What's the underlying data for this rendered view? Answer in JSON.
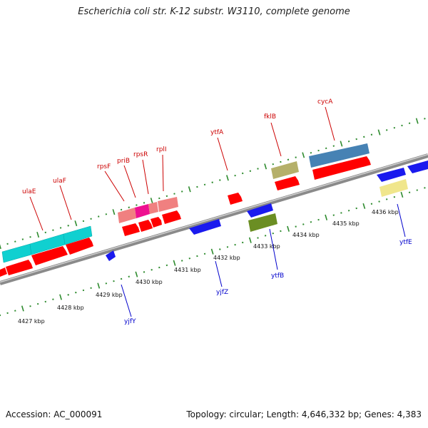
{
  "header": {
    "title": "Escherichia coli str. K-12 substr. W3110, complete genome"
  },
  "footer": {
    "accession": "Accession: AC_000091",
    "summary": "Topology: circular; Length: 4,646,332 bp; Genes: 4,383"
  },
  "map": {
    "ruler_ticks": [
      "4427 kbp",
      "4428 kbp",
      "4429 kbp",
      "4430 kbp",
      "4431 kbp",
      "4432 kbp",
      "4433 kbp",
      "4434 kbp",
      "4435 kbp",
      "4436 kbp"
    ],
    "forward_genes": [
      "ulaE",
      "ulaF",
      "rpsF",
      "priB",
      "rpsR",
      "rplI",
      "ytfA",
      "fklB",
      "cycA"
    ],
    "reverse_genes": [
      "yjfY",
      "yjfZ",
      "ytfB",
      "ytfE"
    ]
  },
  "colors": {
    "backbone": "#8a8a8a",
    "tick": "#2e8b2e",
    "forward_label": "#cc0000",
    "reverse_label": "#0000cc",
    "cds": "#ff0000",
    "cds_reverse": "#1a1aee",
    "cyan": "#10d0d0",
    "salmon": "#f08080",
    "magenta": "#ee1090",
    "khaki": "#b5b06a",
    "steelblue": "#4682b4",
    "olive": "#6b8e23",
    "yellow": "#f0e68c"
  }
}
